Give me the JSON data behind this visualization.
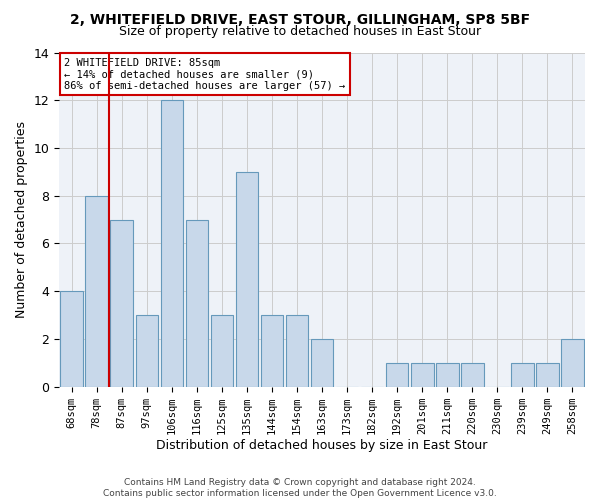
{
  "title": "2, WHITEFIELD DRIVE, EAST STOUR, GILLINGHAM, SP8 5BF",
  "subtitle": "Size of property relative to detached houses in East Stour",
  "xlabel": "Distribution of detached houses by size in East Stour",
  "ylabel": "Number of detached properties",
  "footer1": "Contains HM Land Registry data © Crown copyright and database right 2024.",
  "footer2": "Contains public sector information licensed under the Open Government Licence v3.0.",
  "categories": [
    "68sqm",
    "78sqm",
    "87sqm",
    "97sqm",
    "106sqm",
    "116sqm",
    "125sqm",
    "135sqm",
    "144sqm",
    "154sqm",
    "163sqm",
    "173sqm",
    "182sqm",
    "192sqm",
    "201sqm",
    "211sqm",
    "220sqm",
    "230sqm",
    "239sqm",
    "249sqm",
    "258sqm"
  ],
  "values": [
    4,
    8,
    7,
    3,
    12,
    7,
    3,
    9,
    3,
    3,
    2,
    0,
    0,
    1,
    1,
    1,
    1,
    0,
    1,
    1,
    2
  ],
  "bar_color": "#c8d8ea",
  "bar_edge_color": "#6699bb",
  "grid_color": "#cccccc",
  "bg_color": "#eef2f8",
  "marker_color": "#cc0000",
  "annotation_line1": "2 WHITEFIELD DRIVE: 85sqm",
  "annotation_line2": "← 14% of detached houses are smaller (9)",
  "annotation_line3": "86% of semi-detached houses are larger (57) →",
  "annotation_box_edgecolor": "#cc0000",
  "ylim": [
    0,
    14
  ],
  "yticks": [
    0,
    2,
    4,
    6,
    8,
    10,
    12,
    14
  ],
  "title_fontsize": 10,
  "subtitle_fontsize": 9
}
